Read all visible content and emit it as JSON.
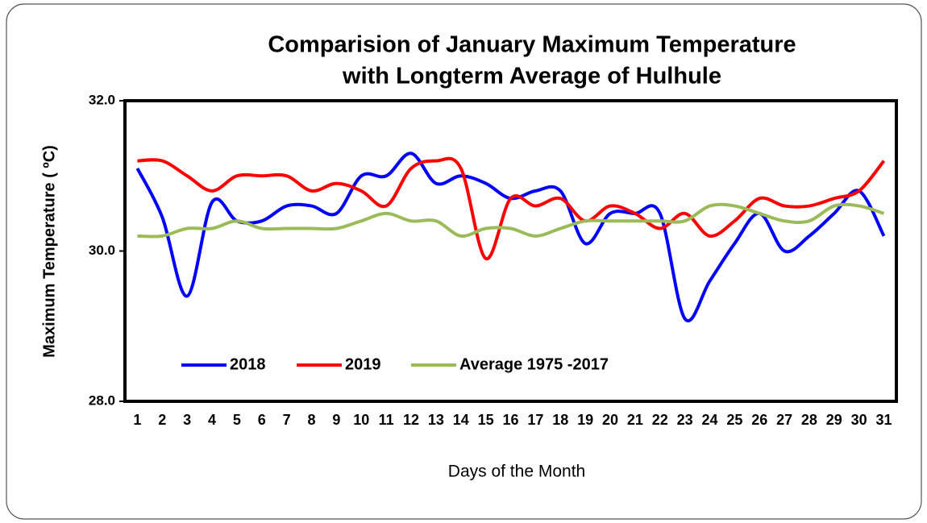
{
  "chart_data": {
    "type": "line",
    "title": [
      "Comparision of January Maximum Temperature",
      "with Longterm Average of Hulhule"
    ],
    "ylabel": "Maximum Temperature ( ºC)",
    "xlabel": "Days of the Month",
    "categories": [
      "1",
      "2",
      "3",
      "4",
      "5",
      "6",
      "7",
      "8",
      "9",
      "10",
      "11",
      "12",
      "13",
      "14",
      "15",
      "16",
      "17",
      "18",
      "19",
      "20",
      "21",
      "22",
      "23",
      "24",
      "25",
      "26",
      "27",
      "28",
      "29",
      "30",
      "31"
    ],
    "series": [
      {
        "name": "2018",
        "color": "#0000ff",
        "values": [
          31.1,
          30.45,
          29.4,
          30.65,
          30.4,
          30.4,
          30.6,
          30.6,
          30.5,
          31.0,
          31.0,
          31.3,
          30.9,
          31.0,
          30.9,
          30.7,
          30.8,
          30.8,
          30.1,
          30.5,
          30.5,
          30.5,
          29.1,
          29.6,
          30.1,
          30.5,
          30.0,
          30.2,
          30.5,
          30.8,
          30.2
        ]
      },
      {
        "name": "2019",
        "color": "#ff0000",
        "values": [
          31.2,
          31.2,
          31.0,
          30.8,
          31.0,
          31.0,
          31.0,
          30.8,
          30.9,
          30.8,
          30.6,
          31.1,
          31.2,
          31.1,
          29.9,
          30.7,
          30.6,
          30.7,
          30.4,
          30.6,
          30.5,
          30.3,
          30.5,
          30.2,
          30.4,
          30.7,
          30.6,
          30.6,
          30.7,
          30.8,
          31.2
        ]
      },
      {
        "name": "Average 1975 -2017",
        "color": "#9bbb59",
        "values": [
          30.2,
          30.2,
          30.3,
          30.3,
          30.4,
          30.3,
          30.3,
          30.3,
          30.3,
          30.4,
          30.5,
          30.4,
          30.4,
          30.2,
          30.3,
          30.3,
          30.2,
          30.3,
          30.4,
          30.4,
          30.4,
          30.4,
          30.4,
          30.6,
          30.6,
          30.5,
          30.4,
          30.4,
          30.6,
          30.6,
          30.5
        ]
      }
    ],
    "ylim": [
      28,
      32
    ],
    "yticks": [
      {
        "value": 28,
        "label": "28.0"
      },
      {
        "value": 30,
        "label": "30.0"
      },
      {
        "value": 32,
        "label": "32.0"
      }
    ],
    "grid": false,
    "legend": "bottom-left"
  }
}
